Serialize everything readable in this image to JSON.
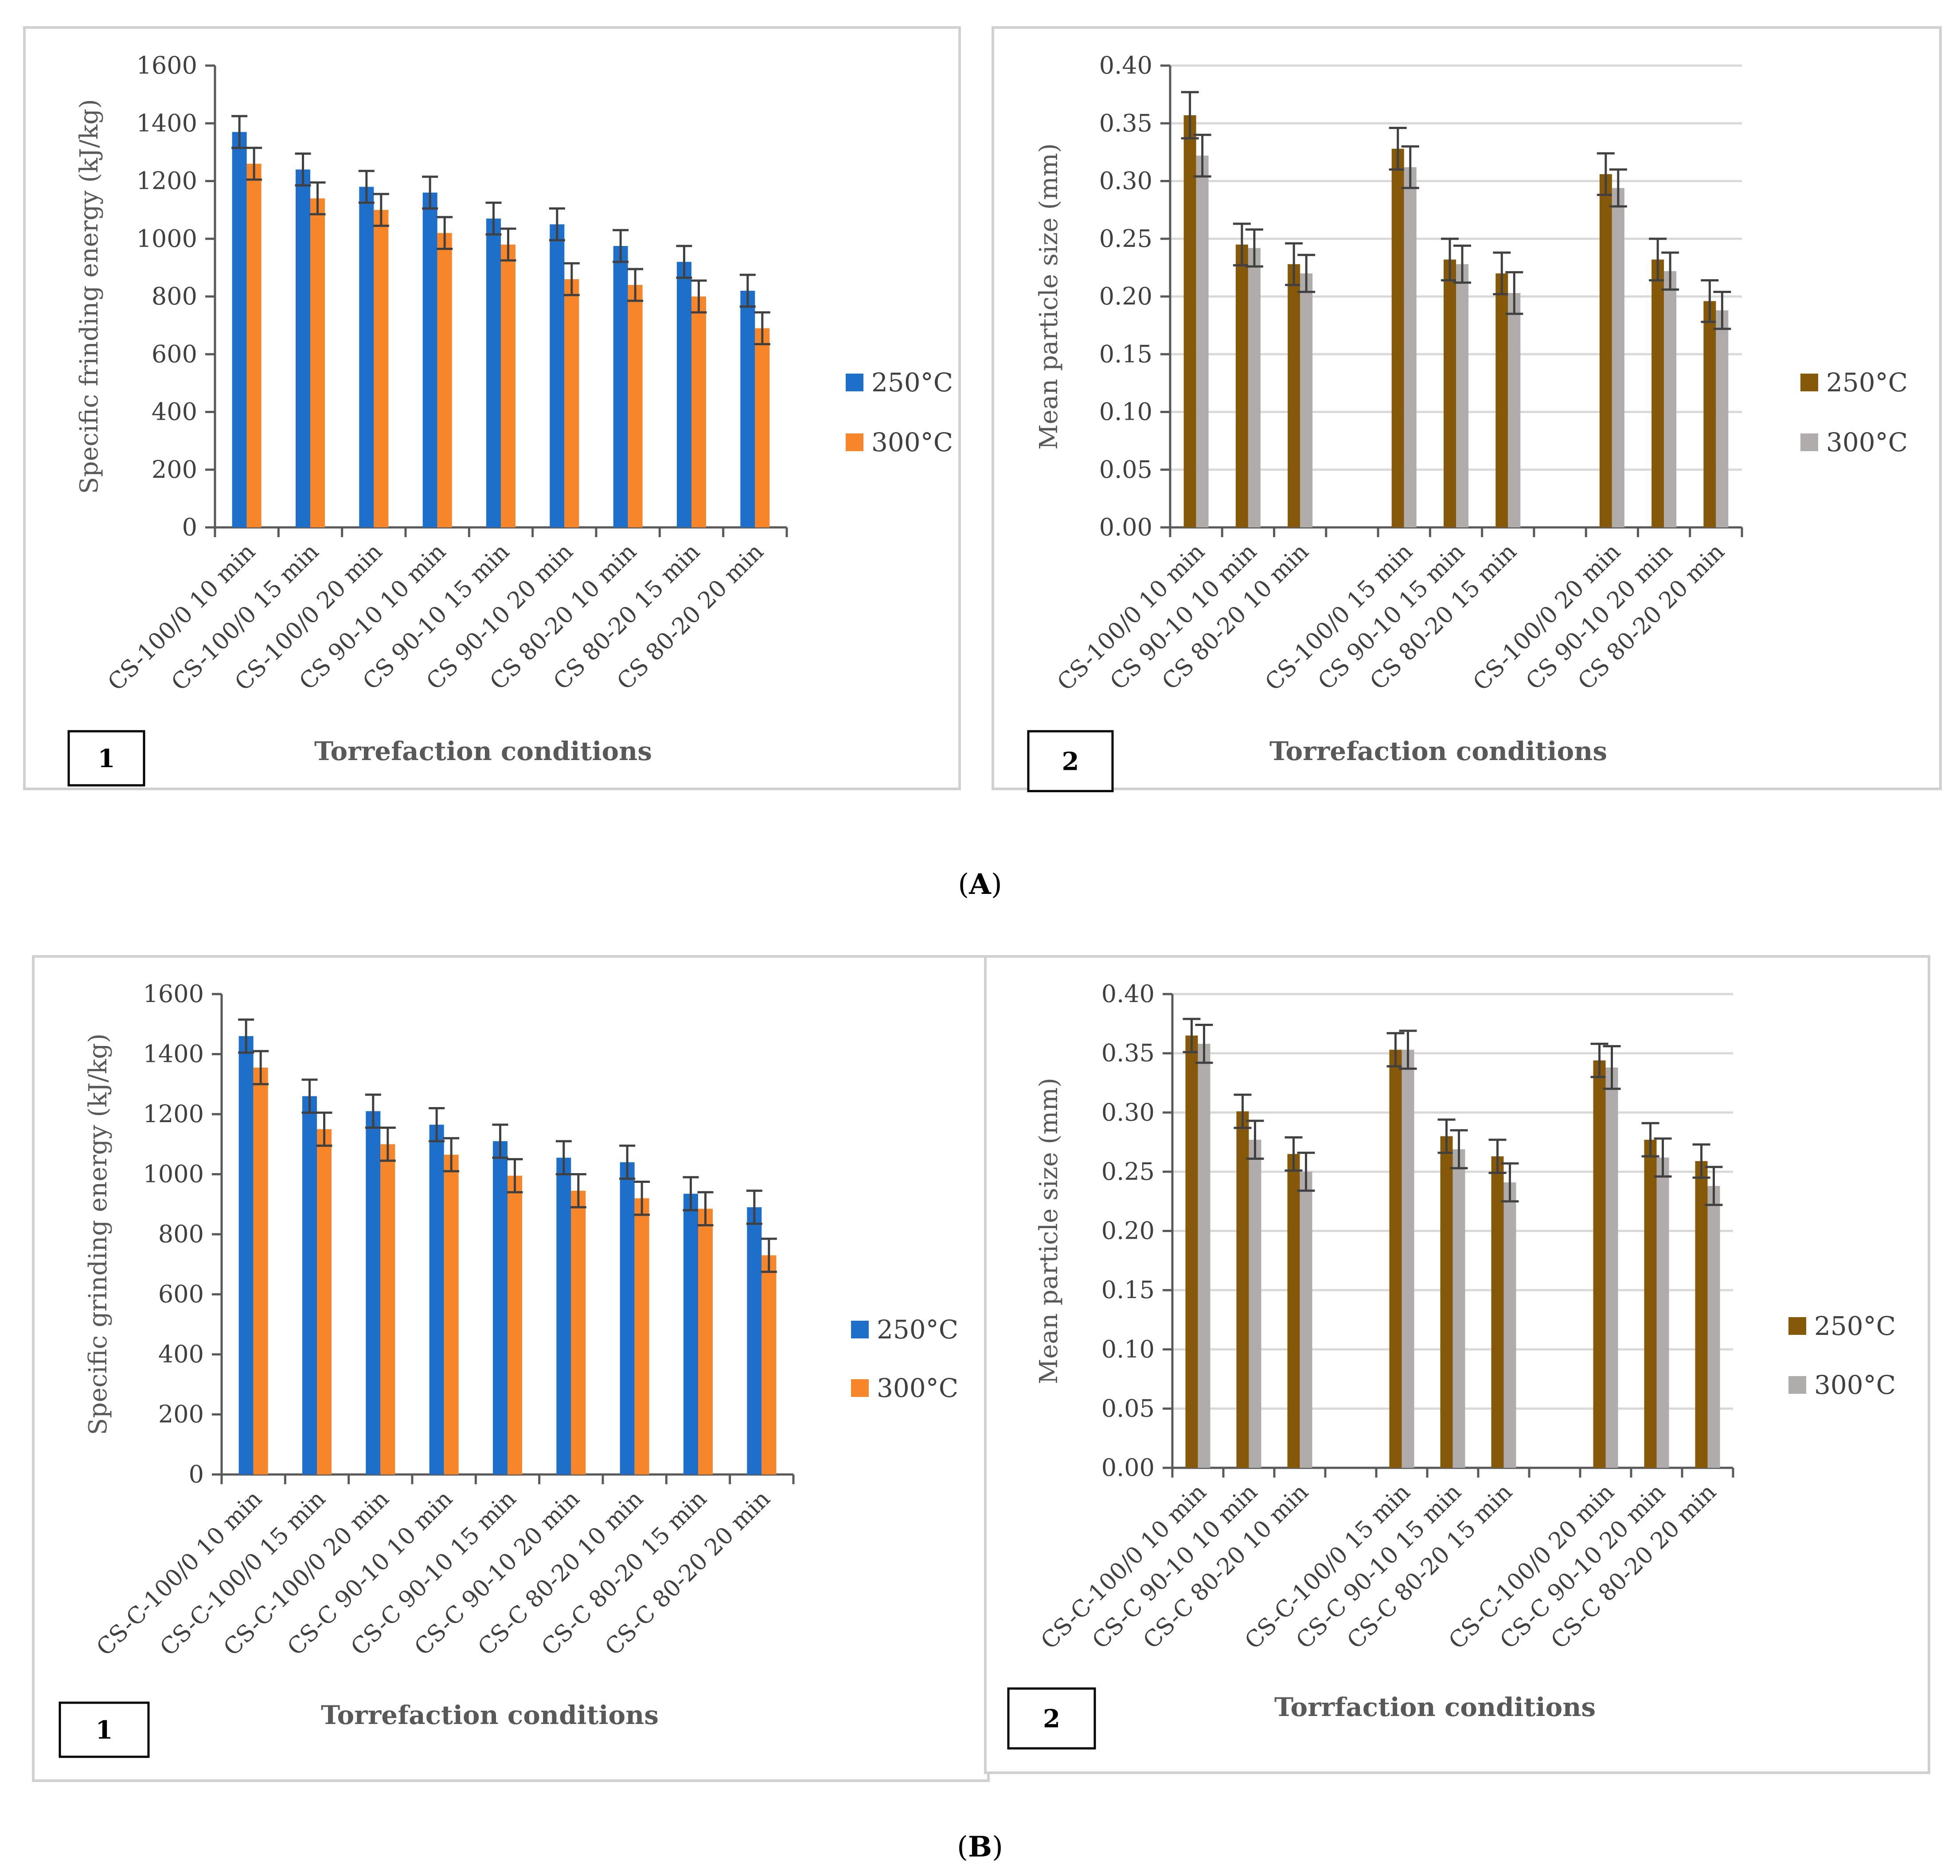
{
  "panels": [
    {
      "label_open": "(",
      "label_letter": "A",
      "label_close": ")"
    },
    {
      "label_open": "(",
      "label_letter": "B",
      "label_close": ")"
    }
  ],
  "colors": {
    "blue": "#1e6fc9",
    "orange": "#f7862a",
    "brown": "#86590a",
    "gray": "#b0acab",
    "grid": "#d9d9d9",
    "axis": "#595959",
    "frame": "#d0d0d0",
    "errbar": "#404040"
  },
  "chart_data": [
    {
      "id": "A1",
      "type": "bar",
      "figure_number": "1",
      "title": "",
      "xlabel": "Torrefaction conditions",
      "ylabel": "Specific frinding energy (kJ/kg)",
      "ylim": [
        0,
        1600
      ],
      "yticks": [
        0,
        200,
        400,
        600,
        800,
        1000,
        1200,
        1400,
        1600
      ],
      "ytick_labels": [
        "0",
        "200",
        "400",
        "600",
        "800",
        "1000",
        "1200",
        "1400",
        "1600"
      ],
      "grid": false,
      "legend": "right",
      "categories": [
        "CS-100/0 10 min",
        "CS-100/0 15 min",
        "CS-100/0 20 min",
        "CS 90-10 10 min",
        "CS 90-10 15 min",
        "CS 90-10 20 min",
        "CS 80-20 10 min",
        "CS 80-20 15 min",
        "CS 80-20 20 min"
      ],
      "series": [
        {
          "name": "250°C",
          "color": "#1e6fc9",
          "values": [
            1370,
            1240,
            1180,
            1160,
            1070,
            1050,
            975,
            920,
            820
          ],
          "errors": [
            55,
            55,
            55,
            55,
            55,
            55,
            55,
            55,
            55
          ]
        },
        {
          "name": "300°C",
          "color": "#f7862a",
          "values": [
            1260,
            1140,
            1100,
            1020,
            980,
            860,
            840,
            800,
            690
          ],
          "errors": [
            55,
            55,
            55,
            55,
            55,
            55,
            55,
            55,
            55
          ]
        }
      ]
    },
    {
      "id": "A2",
      "type": "bar",
      "figure_number": "2",
      "title": "",
      "xlabel": "Torrefaction conditions",
      "ylabel": "Mean particle size (mm)",
      "ylim": [
        0,
        0.4
      ],
      "yticks": [
        0,
        0.05,
        0.1,
        0.15,
        0.2,
        0.25,
        0.3,
        0.35,
        0.4
      ],
      "ytick_labels": [
        "0.00",
        "0.05",
        "0.10",
        "0.15",
        "0.20",
        "0.25",
        "0.30",
        "0.35",
        "0.40"
      ],
      "grid": true,
      "legend": "right",
      "categories": [
        "CS-100/0 10 min",
        "CS 90-10 10 min",
        "CS 80-20 10 min",
        "",
        "CS-100/0 15 min",
        "CS 90-10 15 min",
        "CS 80-20 15 min",
        "",
        "CS-100/0 20 min",
        "CS 90-10 20 min",
        "CS 80-20 20 min"
      ],
      "series": [
        {
          "name": "250°C",
          "color": "#86590a",
          "values": [
            0.357,
            0.245,
            0.228,
            null,
            0.328,
            0.232,
            0.22,
            null,
            0.306,
            0.232,
            0.196
          ],
          "errors": [
            0.02,
            0.018,
            0.018,
            null,
            0.018,
            0.018,
            0.018,
            null,
            0.018,
            0.018,
            0.018
          ]
        },
        {
          "name": "300°C",
          "color": "#b0acab",
          "values": [
            0.322,
            0.242,
            0.22,
            null,
            0.312,
            0.228,
            0.203,
            null,
            0.294,
            0.222,
            0.188
          ],
          "errors": [
            0.018,
            0.016,
            0.016,
            null,
            0.018,
            0.016,
            0.018,
            null,
            0.016,
            0.016,
            0.016
          ]
        }
      ]
    },
    {
      "id": "B1",
      "type": "bar",
      "figure_number": "1",
      "title": "",
      "xlabel": "Torrefaction conditions",
      "ylabel": "Specific grinding energy (kJ/kg)",
      "ylim": [
        0,
        1600
      ],
      "yticks": [
        0,
        200,
        400,
        600,
        800,
        1000,
        1200,
        1400,
        1600
      ],
      "ytick_labels": [
        "0",
        "200",
        "400",
        "600",
        "800",
        "1000",
        "1200",
        "1400",
        "1600"
      ],
      "grid": false,
      "legend": "right",
      "categories": [
        "CS-C-100/0 10 min",
        "CS-C-100/0 15 min",
        "CS-C-100/0 20 min",
        "CS-C 90-10 10 min",
        "CS-C 90-10 15 min",
        "CS-C 90-10 20 min",
        "CS-C 80-20 10 min",
        "CS-C 80-20 15 min",
        "CS-C 80-20 20 min"
      ],
      "series": [
        {
          "name": "250°C",
          "color": "#1e6fc9",
          "values": [
            1460,
            1260,
            1210,
            1165,
            1110,
            1055,
            1040,
            935,
            890
          ],
          "errors": [
            55,
            55,
            55,
            55,
            55,
            55,
            55,
            55,
            55
          ]
        },
        {
          "name": "300°C",
          "color": "#f7862a",
          "values": [
            1355,
            1150,
            1100,
            1065,
            995,
            945,
            920,
            885,
            730
          ],
          "errors": [
            55,
            55,
            55,
            55,
            55,
            55,
            55,
            55,
            55
          ]
        }
      ]
    },
    {
      "id": "B2",
      "type": "bar",
      "figure_number": "2",
      "title": "",
      "xlabel": "Torrfaction conditions",
      "ylabel": "Mean particle size (mm)",
      "ylim": [
        0,
        0.4
      ],
      "yticks": [
        0,
        0.05,
        0.1,
        0.15,
        0.2,
        0.25,
        0.3,
        0.35,
        0.4
      ],
      "ytick_labels": [
        "0.00",
        "0.05",
        "0.10",
        "0.15",
        "0.20",
        "0.25",
        "0.30",
        "0.35",
        "0.40"
      ],
      "grid": true,
      "legend": "right",
      "categories": [
        "CS-C-100/0 10 min",
        "CS-C 90-10 10 min",
        "CS-C 80-20 10 min",
        "",
        "CS-C-100/0 15 min",
        "CS-C 90-10 15 min",
        "CS-C 80-20 15 min",
        "",
        "CS-C-100/0 20 min",
        "CS-C 90-10 20 min",
        "CS-C 80-20 20 min"
      ],
      "series": [
        {
          "name": "250°C",
          "color": "#86590a",
          "values": [
            0.365,
            0.301,
            0.265,
            null,
            0.353,
            0.28,
            0.263,
            null,
            0.344,
            0.277,
            0.259
          ],
          "errors": [
            0.014,
            0.014,
            0.014,
            null,
            0.014,
            0.014,
            0.014,
            null,
            0.014,
            0.014,
            0.014
          ]
        },
        {
          "name": "300°C",
          "color": "#b0acab",
          "values": [
            0.358,
            0.277,
            0.25,
            null,
            0.353,
            0.269,
            0.241,
            null,
            0.338,
            0.262,
            0.238
          ],
          "errors": [
            0.016,
            0.016,
            0.016,
            null,
            0.016,
            0.016,
            0.016,
            null,
            0.018,
            0.016,
            0.016
          ]
        }
      ]
    }
  ]
}
